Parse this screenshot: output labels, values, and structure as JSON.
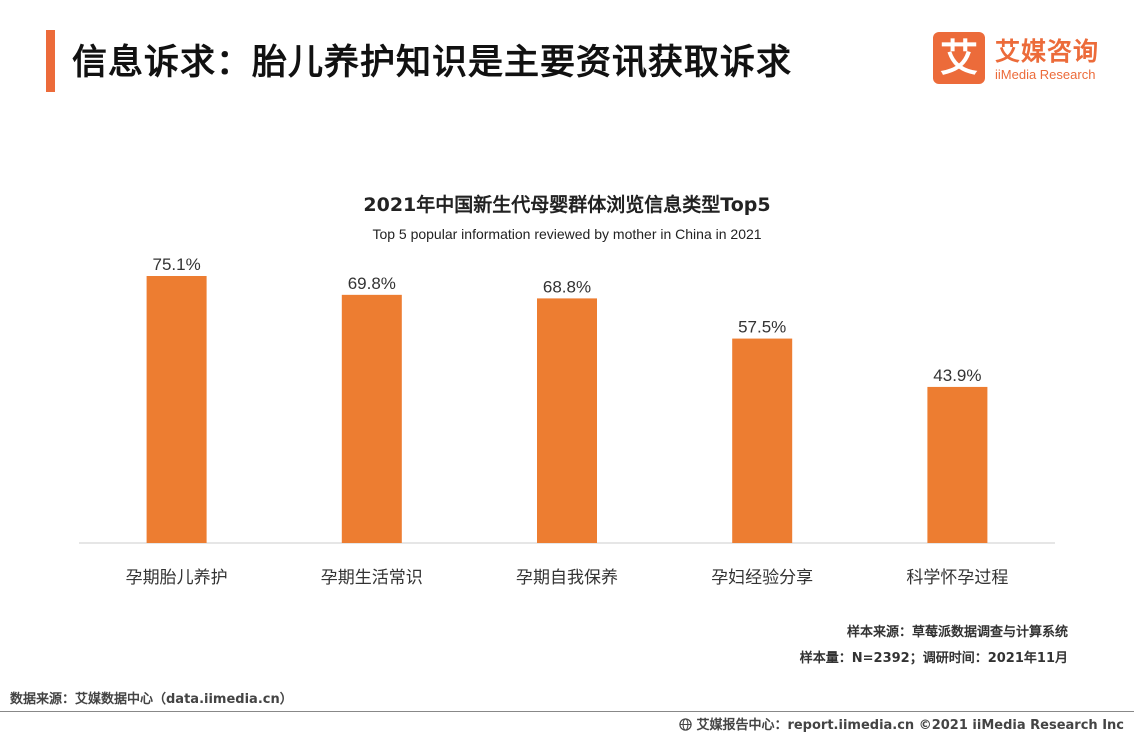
{
  "page_title": "信息诉求：胎儿养护知识是主要资讯获取诉求",
  "logo": {
    "mark": "艾",
    "cn": "艾媒咨询",
    "en": "iiMedia Research"
  },
  "colors": {
    "accent": "#ec6b3a",
    "bar": "#ed7d31",
    "baseline": "#cccccc"
  },
  "chart_data": {
    "type": "bar",
    "title": "2021年中国新生代母婴群体浏览信息类型Top5",
    "subtitle": "Top 5 popular information reviewed by mother in China in 2021",
    "categories": [
      "孕期胎儿养护",
      "孕期生活常识",
      "孕期自我保养",
      "孕妇经验分享",
      "科学怀孕过程"
    ],
    "values": [
      75.1,
      69.8,
      68.8,
      57.5,
      43.9
    ],
    "value_labels": [
      "75.1%",
      "69.8%",
      "68.8%",
      "57.5%",
      "43.9%"
    ],
    "xlabel": "",
    "ylabel": "",
    "ylim": [
      0,
      75.1
    ],
    "grid": false
  },
  "notes": {
    "sample_source": "样本来源：草莓派数据调查与计算系统",
    "sample_size": "样本量：N=2392；调研时间：2021年11月"
  },
  "footer": {
    "data_source": "数据来源：艾媒数据中心（data.iimedia.cn）",
    "right": "艾媒报告中心：report.iimedia.cn  ©2021  iiMedia Research  Inc",
    "globe_icon": "globe-icon"
  }
}
